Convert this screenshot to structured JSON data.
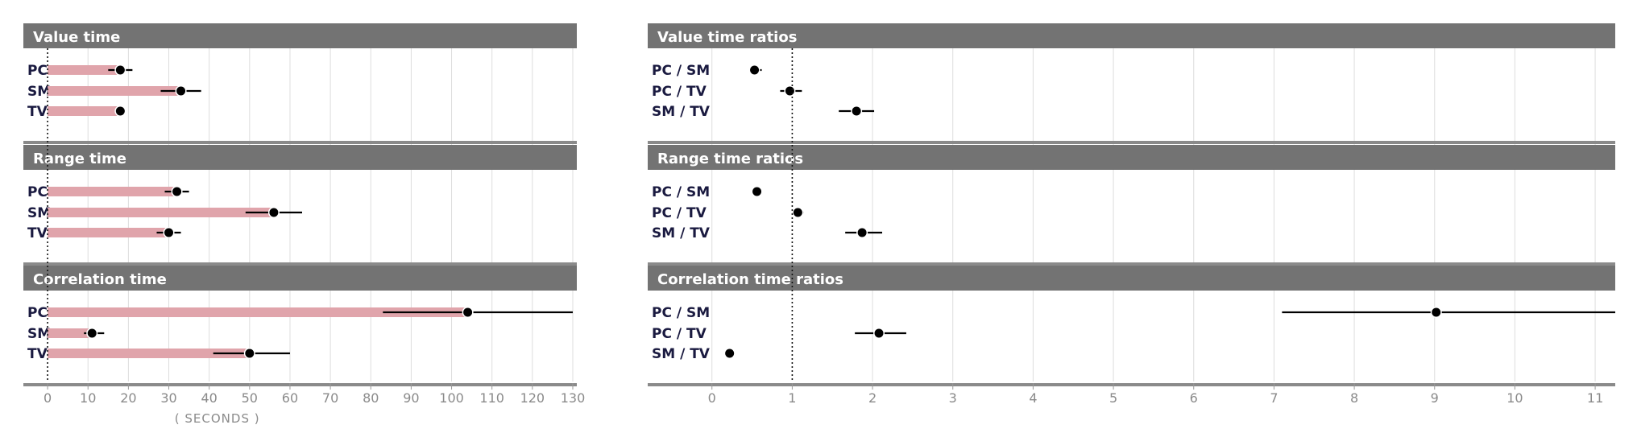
{
  "chart_data": [
    {
      "type": "bar",
      "xlabel": "( SECONDS )",
      "xlim": [
        -6,
        131
      ],
      "xticks": [
        0,
        10,
        20,
        30,
        40,
        50,
        60,
        70,
        80,
        90,
        100,
        110,
        120,
        130
      ],
      "reference_line": 0,
      "grid": true,
      "colors": {
        "bar": "#e0a4ab",
        "point": "#000000",
        "header": "#737373",
        "separator": "#8a8a8a"
      },
      "panels": [
        {
          "title": "Value  time",
          "rows": [
            {
              "label": "PC",
              "value": 18,
              "ci": [
                15,
                21
              ]
            },
            {
              "label": "SM",
              "value": 33,
              "ci": [
                28,
                38
              ]
            },
            {
              "label": "TV",
              "value": 18,
              "ci": [
                17,
                19
              ]
            }
          ]
        },
        {
          "title": "Range time",
          "rows": [
            {
              "label": "PC",
              "value": 32,
              "ci": [
                29,
                35
              ]
            },
            {
              "label": "SM",
              "value": 56,
              "ci": [
                49,
                63
              ]
            },
            {
              "label": "TV",
              "value": 30,
              "ci": [
                27,
                33
              ]
            }
          ]
        },
        {
          "title": "Correlation time",
          "rows": [
            {
              "label": "PC",
              "value": 104,
              "ci": [
                83,
                130
              ]
            },
            {
              "label": "SM",
              "value": 11,
              "ci": [
                9,
                14
              ]
            },
            {
              "label": "TV",
              "value": 50,
              "ci": [
                41,
                60
              ]
            }
          ]
        }
      ]
    },
    {
      "type": "scatter",
      "xlabel": "",
      "xlim": [
        -0.8,
        11.25
      ],
      "xticks": [
        0,
        1,
        2,
        3,
        4,
        5,
        6,
        7,
        8,
        9,
        10,
        11
      ],
      "reference_line": 1,
      "grid": true,
      "colors": {
        "point": "#000000",
        "header": "#737373",
        "separator": "#8a8a8a"
      },
      "panels": [
        {
          "title": "Value time ratios",
          "rows": [
            {
              "label": "PC / SM",
              "value": 0.53,
              "ci": [
                0.48,
                0.62
              ]
            },
            {
              "label": "PC / TV",
              "value": 0.97,
              "ci": [
                0.85,
                1.12
              ]
            },
            {
              "label": "SM / TV",
              "value": 1.8,
              "ci": [
                1.58,
                2.02
              ]
            }
          ]
        },
        {
          "title": "Range time  ratios",
          "rows": [
            {
              "label": "PC / SM",
              "value": 0.56,
              "ci": [
                0.53,
                0.59
              ]
            },
            {
              "label": "PC / TV",
              "value": 1.07,
              "ci": [
                1.0,
                1.14
              ]
            },
            {
              "label": "SM / TV",
              "value": 1.87,
              "ci": [
                1.66,
                2.12
              ]
            }
          ]
        },
        {
          "title": "Correlation time ratios",
          "rows": [
            {
              "label": "PC / SM",
              "value": 9.02,
              "ci": [
                7.1,
                11.25
              ]
            },
            {
              "label": "PC / TV",
              "value": 2.08,
              "ci": [
                1.78,
                2.42
              ]
            },
            {
              "label": "SM / TV",
              "value": 0.22,
              "ci": [
                0.2,
                0.25
              ]
            }
          ]
        }
      ]
    }
  ]
}
